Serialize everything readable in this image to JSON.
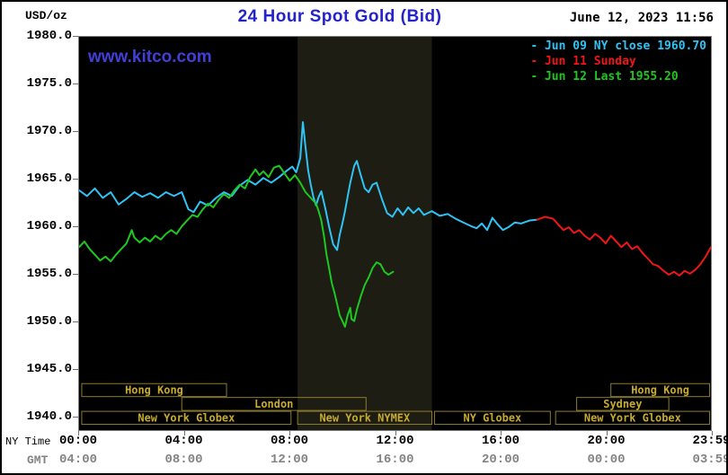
{
  "header": {
    "units": "USD/oz",
    "title": "24 Hour Spot Gold (Bid)",
    "datetime": "June 12, 2023 11:56",
    "watermark": "www.kitco.com"
  },
  "legend": [
    {
      "label": "Jun 09 NY close 1960.70",
      "color": "#2ec4f5"
    },
    {
      "label": "Jun 11 Sunday",
      "color": "#f21616"
    },
    {
      "label": "Jun 12 Last 1955.20",
      "color": "#1ec81e"
    }
  ],
  "axes": {
    "ny_time_label": "NY Time",
    "gmt_label": "GMT",
    "y_ticks": [
      "1980.0",
      "1975.0",
      "1970.0",
      "1965.0",
      "1960.0",
      "1955.0",
      "1950.0",
      "1945.0",
      "1940.0"
    ],
    "y_values": [
      1980,
      1975,
      1970,
      1965,
      1960,
      1955,
      1950,
      1945,
      1940
    ],
    "x_ticks": [
      {
        "h": 0,
        "ny": "00:00",
        "gmt": "04:00"
      },
      {
        "h": 4,
        "ny": "04:00",
        "gmt": "08:00"
      },
      {
        "h": 8,
        "ny": "08:00",
        "gmt": "12:00"
      },
      {
        "h": 12,
        "ny": "12:00",
        "gmt": "16:00"
      },
      {
        "h": 16,
        "ny": "16:00",
        "gmt": "20:00"
      },
      {
        "h": 20,
        "ny": "20:00",
        "gmt": "00:00"
      },
      {
        "h": 23.983,
        "ny": "23:59",
        "gmt": "03:59"
      }
    ]
  },
  "sessions": [
    {
      "label": "Hong Kong",
      "start": 0.1,
      "end": 5.6,
      "row": 0
    },
    {
      "label": "London",
      "start": 3.9,
      "end": 10.9,
      "row": 1
    },
    {
      "label": "New York Globex",
      "start": 0.1,
      "end": 8.05,
      "row": 2
    },
    {
      "label": "New York NYMEX",
      "start": 8.3,
      "end": 13.4,
      "row": 2
    },
    {
      "label": "NY Globex",
      "start": 13.5,
      "end": 17.9,
      "row": 2
    },
    {
      "label": "New York Globex",
      "start": 18.1,
      "end": 23.95,
      "row": 2
    },
    {
      "label": "Sydney",
      "start": 18.9,
      "end": 22.4,
      "row": 1
    },
    {
      "label": "Hong Kong",
      "start": 20.2,
      "end": 23.95,
      "row": 0
    }
  ],
  "session_style": {
    "text_color": "#c9ac2e",
    "border_color": "#8f7c2c"
  },
  "chart_data": {
    "type": "line",
    "title": "24 Hour Spot Gold (Bid)",
    "xlabel": "NY Time (hours)",
    "ylabel": "USD/oz",
    "xlim": [
      0,
      24
    ],
    "ylim": [
      1940,
      1980
    ],
    "grid": false,
    "legend_position": "top-right",
    "bands": [
      {
        "start": 8.3,
        "end": 13.4,
        "color": "#1d1d14"
      }
    ],
    "series": [
      {
        "name": "Jun 09 NY close",
        "close": 1960.7,
        "color": "#2ec4f5",
        "points": [
          [
            0,
            1963.8
          ],
          [
            0.3,
            1963.2
          ],
          [
            0.6,
            1964.0
          ],
          [
            0.9,
            1963.0
          ],
          [
            1.2,
            1963.6
          ],
          [
            1.5,
            1962.3
          ],
          [
            1.8,
            1962.9
          ],
          [
            2.1,
            1963.6
          ],
          [
            2.4,
            1963.1
          ],
          [
            2.7,
            1963.5
          ],
          [
            3.0,
            1963.0
          ],
          [
            3.3,
            1963.6
          ],
          [
            3.6,
            1963.2
          ],
          [
            3.9,
            1963.6
          ],
          [
            4.15,
            1961.8
          ],
          [
            4.35,
            1961.5
          ],
          [
            4.6,
            1962.6
          ],
          [
            4.9,
            1962.2
          ],
          [
            5.2,
            1963.0
          ],
          [
            5.5,
            1963.6
          ],
          [
            5.8,
            1963.2
          ],
          [
            6.1,
            1964.3
          ],
          [
            6.4,
            1964.9
          ],
          [
            6.7,
            1964.4
          ],
          [
            7.0,
            1965.1
          ],
          [
            7.3,
            1964.6
          ],
          [
            7.6,
            1965.2
          ],
          [
            7.9,
            1965.9
          ],
          [
            8.1,
            1966.3
          ],
          [
            8.25,
            1965.7
          ],
          [
            8.4,
            1967.2
          ],
          [
            8.5,
            1971.0
          ],
          [
            8.6,
            1968.4
          ],
          [
            8.7,
            1965.9
          ],
          [
            8.8,
            1964.4
          ],
          [
            8.9,
            1963.1
          ],
          [
            9.0,
            1962.2
          ],
          [
            9.1,
            1963.1
          ],
          [
            9.2,
            1963.7
          ],
          [
            9.35,
            1961.9
          ],
          [
            9.5,
            1959.9
          ],
          [
            9.65,
            1958.1
          ],
          [
            9.8,
            1957.5
          ],
          [
            9.9,
            1959.1
          ],
          [
            10.0,
            1960.3
          ],
          [
            10.1,
            1961.6
          ],
          [
            10.2,
            1963.1
          ],
          [
            10.3,
            1964.6
          ],
          [
            10.45,
            1966.4
          ],
          [
            10.55,
            1966.9
          ],
          [
            10.7,
            1965.4
          ],
          [
            10.85,
            1964.0
          ],
          [
            11.0,
            1963.6
          ],
          [
            11.15,
            1964.4
          ],
          [
            11.3,
            1964.6
          ],
          [
            11.5,
            1962.9
          ],
          [
            11.7,
            1961.4
          ],
          [
            11.9,
            1961.0
          ],
          [
            12.1,
            1961.9
          ],
          [
            12.3,
            1961.2
          ],
          [
            12.5,
            1962.0
          ],
          [
            12.7,
            1961.4
          ],
          [
            12.9,
            1961.9
          ],
          [
            13.1,
            1961.2
          ],
          [
            13.4,
            1961.6
          ],
          [
            13.7,
            1961.1
          ],
          [
            14.0,
            1961.3
          ],
          [
            14.3,
            1960.8
          ],
          [
            14.6,
            1960.4
          ],
          [
            14.9,
            1960.0
          ],
          [
            15.1,
            1959.8
          ],
          [
            15.3,
            1960.3
          ],
          [
            15.5,
            1959.6
          ],
          [
            15.7,
            1960.9
          ],
          [
            15.9,
            1960.2
          ],
          [
            16.1,
            1959.6
          ],
          [
            16.3,
            1959.9
          ],
          [
            16.55,
            1960.4
          ],
          [
            16.8,
            1960.3
          ],
          [
            17.1,
            1960.6
          ],
          [
            17.4,
            1960.7
          ]
        ]
      },
      {
        "name": "Jun 11 Sunday",
        "color": "#f21616",
        "points": [
          [
            17.4,
            1960.7
          ],
          [
            17.7,
            1961.0
          ],
          [
            18.0,
            1960.8
          ],
          [
            18.2,
            1960.2
          ],
          [
            18.4,
            1959.6
          ],
          [
            18.6,
            1959.9
          ],
          [
            18.8,
            1959.3
          ],
          [
            19.0,
            1959.6
          ],
          [
            19.2,
            1959.0
          ],
          [
            19.4,
            1958.6
          ],
          [
            19.6,
            1959.2
          ],
          [
            19.8,
            1958.8
          ],
          [
            20.0,
            1958.2
          ],
          [
            20.2,
            1959.0
          ],
          [
            20.4,
            1958.4
          ],
          [
            20.6,
            1957.8
          ],
          [
            20.8,
            1958.3
          ],
          [
            21.0,
            1957.6
          ],
          [
            21.2,
            1957.9
          ],
          [
            21.4,
            1957.2
          ],
          [
            21.6,
            1956.6
          ],
          [
            21.8,
            1956.0
          ],
          [
            22.0,
            1955.8
          ],
          [
            22.2,
            1955.3
          ],
          [
            22.4,
            1954.9
          ],
          [
            22.6,
            1955.2
          ],
          [
            22.8,
            1954.8
          ],
          [
            23.0,
            1955.3
          ],
          [
            23.2,
            1955.0
          ],
          [
            23.4,
            1955.4
          ],
          [
            23.6,
            1956.0
          ],
          [
            23.8,
            1956.8
          ],
          [
            24.0,
            1957.8
          ]
        ]
      },
      {
        "name": "Jun 12",
        "last": 1955.2,
        "color": "#1ec81e",
        "points": [
          [
            0,
            1957.8
          ],
          [
            0.2,
            1958.4
          ],
          [
            0.4,
            1957.6
          ],
          [
            0.6,
            1957.0
          ],
          [
            0.8,
            1956.4
          ],
          [
            1.0,
            1956.8
          ],
          [
            1.2,
            1956.3
          ],
          [
            1.4,
            1957.0
          ],
          [
            1.6,
            1957.6
          ],
          [
            1.8,
            1958.2
          ],
          [
            2.0,
            1959.6
          ],
          [
            2.1,
            1958.8
          ],
          [
            2.3,
            1958.3
          ],
          [
            2.5,
            1958.8
          ],
          [
            2.7,
            1958.4
          ],
          [
            2.9,
            1959.0
          ],
          [
            3.1,
            1958.6
          ],
          [
            3.3,
            1959.2
          ],
          [
            3.5,
            1959.6
          ],
          [
            3.7,
            1959.2
          ],
          [
            3.9,
            1960.0
          ],
          [
            4.1,
            1960.6
          ],
          [
            4.3,
            1961.2
          ],
          [
            4.5,
            1961.0
          ],
          [
            4.7,
            1961.8
          ],
          [
            4.9,
            1962.4
          ],
          [
            5.1,
            1962.0
          ],
          [
            5.3,
            1962.8
          ],
          [
            5.5,
            1963.4
          ],
          [
            5.7,
            1963.0
          ],
          [
            5.9,
            1963.8
          ],
          [
            6.1,
            1964.4
          ],
          [
            6.3,
            1964.0
          ],
          [
            6.5,
            1965.2
          ],
          [
            6.7,
            1966.0
          ],
          [
            6.85,
            1965.4
          ],
          [
            7.0,
            1965.8
          ],
          [
            7.2,
            1965.2
          ],
          [
            7.4,
            1966.2
          ],
          [
            7.6,
            1966.4
          ],
          [
            7.8,
            1965.6
          ],
          [
            8.0,
            1964.8
          ],
          [
            8.2,
            1965.4
          ],
          [
            8.4,
            1964.6
          ],
          [
            8.6,
            1963.6
          ],
          [
            8.8,
            1963.0
          ],
          [
            9.0,
            1962.4
          ],
          [
            9.1,
            1961.6
          ],
          [
            9.2,
            1960.6
          ],
          [
            9.3,
            1959.0
          ],
          [
            9.4,
            1957.0
          ],
          [
            9.5,
            1955.5
          ],
          [
            9.6,
            1954.0
          ],
          [
            9.7,
            1953.0
          ],
          [
            9.8,
            1951.8
          ],
          [
            9.9,
            1950.6
          ],
          [
            10.0,
            1950.0
          ],
          [
            10.1,
            1949.4
          ],
          [
            10.2,
            1950.6
          ],
          [
            10.3,
            1951.4
          ],
          [
            10.35,
            1950.2
          ],
          [
            10.45,
            1950.0
          ],
          [
            10.55,
            1951.2
          ],
          [
            10.7,
            1952.6
          ],
          [
            10.85,
            1953.8
          ],
          [
            11.0,
            1954.6
          ],
          [
            11.15,
            1955.6
          ],
          [
            11.3,
            1956.2
          ],
          [
            11.45,
            1956.0
          ],
          [
            11.6,
            1955.2
          ],
          [
            11.75,
            1954.9
          ],
          [
            11.93,
            1955.2
          ]
        ]
      }
    ]
  }
}
